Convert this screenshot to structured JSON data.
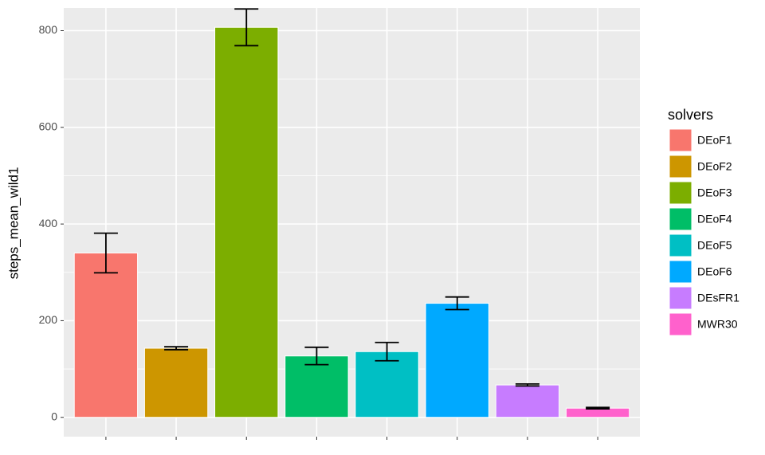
{
  "chart_data": {
    "type": "bar",
    "y_label": "steps_mean_wild1",
    "legend_title": "solvers",
    "categories": [
      "DEoF1",
      "DEoF2",
      "DEoF3",
      "DEoF4",
      "DEoF5",
      "DEoF6",
      "DEsFR1",
      "MWR30"
    ],
    "values": [
      340,
      143,
      807,
      127,
      136,
      236,
      67,
      19
    ],
    "errors": [
      41,
      3,
      38,
      18,
      19,
      13,
      2,
      1.5
    ],
    "colors": [
      "#F8766D",
      "#CD9600",
      "#7CAE00",
      "#00BE67",
      "#00BFC4",
      "#00A9FF",
      "#C77CFF",
      "#FF61CC"
    ],
    "ylim": [
      -40,
      847
    ],
    "yticks": [
      0,
      200,
      400,
      600,
      800
    ],
    "grid": true
  }
}
